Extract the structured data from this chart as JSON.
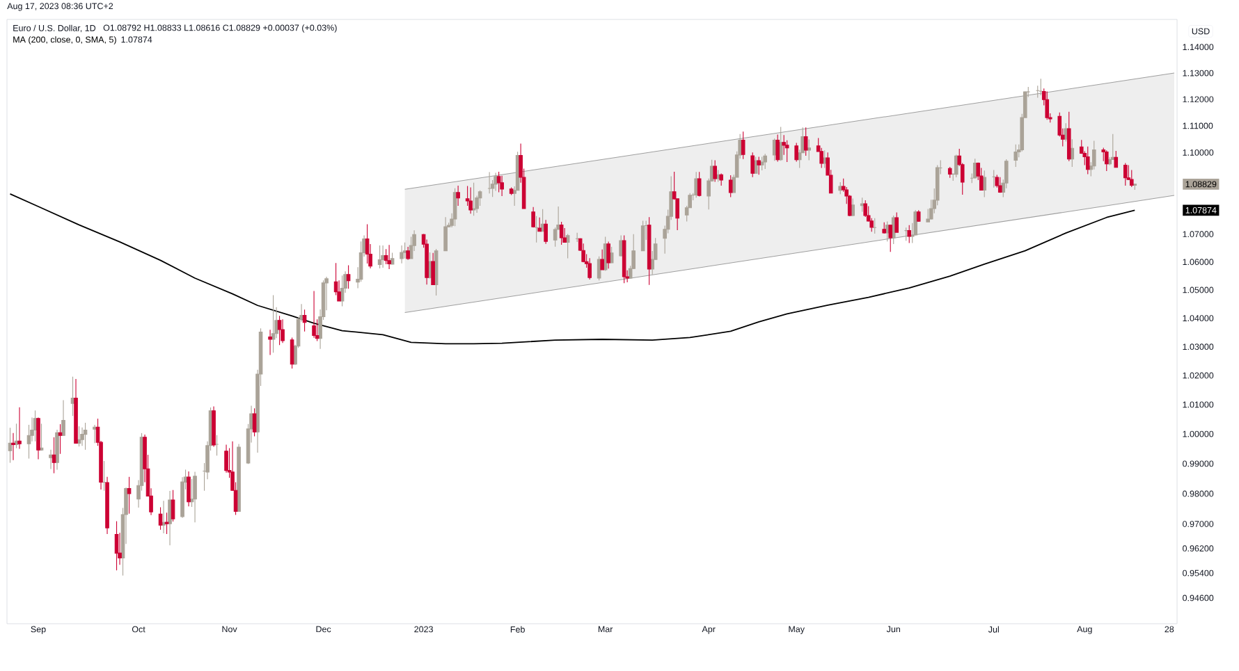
{
  "chart_data": {
    "type": "candlestick",
    "title": "Euro / U.S. Dollar, 1D",
    "subtitle": "O1.08792 H1.08833 L1.08616 C1.08829 +0.00037 (+0.03%)",
    "ylabel": "USD",
    "annotations": [
      "Aug 17, 2023 08:36 UTC+2",
      "1.08829",
      "1.07874"
    ],
    "log": "y",
    "legend": "top left",
    "xlim": [
      "2022-08-22",
      "2023-08-30T12:00"
    ],
    "xticks": [
      {
        "value": "2022-09-01",
        "label": "Sep"
      },
      {
        "value": "2022-10-03",
        "label": "Oct"
      },
      {
        "value": "2022-11-01",
        "label": "Nov"
      },
      {
        "value": "2022-12-01",
        "label": "Dec"
      },
      {
        "value": "2023-01-02",
        "label": "2023"
      },
      {
        "value": "2023-02-01",
        "label": "Feb"
      },
      {
        "value": "2023-03-01",
        "label": "Mar"
      },
      {
        "value": "2023-04-03",
        "label": "Apr"
      },
      {
        "value": "2023-05-01",
        "label": "May"
      },
      {
        "value": "2023-06-01",
        "label": "Jun"
      },
      {
        "value": "2023-07-03",
        "label": "Jul"
      },
      {
        "value": "2023-08-01",
        "label": "Aug"
      },
      {
        "value": "2023-08-28",
        "label": "28"
      }
    ],
    "ylim": [
      0.9378,
      1.1507
    ],
    "yticks": [
      {
        "value": 0.946,
        "label": "0.94600"
      },
      {
        "value": 0.954,
        "label": "0.95400"
      },
      {
        "value": 0.962,
        "label": "0.96200"
      },
      {
        "value": 0.97,
        "label": "0.97000"
      },
      {
        "value": 0.98,
        "label": "0.98000"
      },
      {
        "value": 0.99,
        "label": "0.99000"
      },
      {
        "value": 1.0,
        "label": "1.00000"
      },
      {
        "value": 1.01,
        "label": "1.01000"
      },
      {
        "value": 1.02,
        "label": "1.02000"
      },
      {
        "value": 1.03,
        "label": "1.03000"
      },
      {
        "value": 1.04,
        "label": "1.04000"
      },
      {
        "value": 1.05,
        "label": "1.05000"
      },
      {
        "value": 1.06,
        "label": "1.06000"
      },
      {
        "value": 1.07,
        "label": "1.07000"
      },
      {
        "value": 1.1,
        "label": "1.10000"
      },
      {
        "value": 1.11,
        "label": "1.11000"
      },
      {
        "value": 1.12,
        "label": "1.12000"
      },
      {
        "value": 1.13,
        "label": "1.13000"
      },
      {
        "value": 1.14,
        "label": "1.14000"
      }
    ],
    "series": [
      {
        "type": "line",
        "color": "#9e9e9e",
        "x": [
          "2022-12-27",
          "2023-08-29T14:24"
        ],
        "values": [
          1.0864,
          1.13
        ],
        "lower": [
          1.042,
          1.0841
        ],
        "upper": [
          1.0864,
          1.13
        ]
      },
      {
        "type": "line",
        "color": "#9e9e9e",
        "x": [
          "2022-12-27",
          "2023-08-29T14:24"
        ],
        "values": [
          1.042,
          1.0841
        ]
      },
      {
        "type": "line",
        "name": "MA (200, close, 0, SMA, 5)",
        "color": "#000000",
        "x": [
          "2022-08-23",
          "2022-09-01",
          "2022-09-14",
          "2022-09-27",
          "2022-10-10",
          "2022-10-21",
          "2022-11-02",
          "2022-11-10",
          "2022-11-21",
          "2022-11-28",
          "2022-12-07",
          "2022-12-20",
          "2022-12-29",
          "2023-01-09",
          "2023-01-18",
          "2023-01-27",
          "2023-02-13",
          "2023-02-28",
          "2023-03-16",
          "2023-03-28",
          "2023-04-10",
          "2023-04-19",
          "2023-04-28",
          "2023-05-11",
          "2023-05-24",
          "2023-06-06",
          "2023-06-19",
          "2023-06-30",
          "2023-07-13",
          "2023-07-26",
          "2023-08-08",
          "2023-08-17"
        ],
        "values": [
          1.0847,
          1.0801,
          1.0734,
          1.0672,
          1.0606,
          1.0542,
          1.0486,
          1.0445,
          1.0408,
          1.0382,
          1.0356,
          1.0342,
          1.0315,
          1.031,
          1.031,
          1.0312,
          1.0323,
          1.0326,
          1.0323,
          1.0332,
          1.0354,
          1.0387,
          1.0415,
          1.0446,
          1.0474,
          1.0507,
          1.0549,
          1.0592,
          1.064,
          1.0704,
          1.0761,
          1.0787
        ]
      },
      {
        "color": "#aaa398",
        "x": [
          "2022-08-23",
          "2022-08-25",
          "2022-08-29",
          "2022-08-30",
          "2022-08-31",
          "2022-09-02",
          "2022-09-05",
          "2022-09-07",
          "2022-09-09",
          "2022-09-12",
          "2022-09-14",
          "2022-09-15",
          "2022-09-16",
          "2022-09-19",
          "2022-09-22",
          "2022-09-28",
          "2022-09-29",
          "2022-10-03",
          "2022-10-04",
          "2022-10-11",
          "2022-10-13",
          "2022-10-17",
          "2022-10-18",
          "2022-10-20",
          "2022-10-21",
          "2022-10-24",
          "2022-10-25",
          "2022-10-26",
          "2022-10-28",
          "2022-11-04",
          "2022-11-07",
          "2022-11-08",
          "2022-11-10",
          "2022-11-11",
          "2022-11-15",
          "2022-11-16",
          "2022-11-22",
          "2022-11-23",
          "2022-11-24",
          "2022-11-30",
          "2022-12-01",
          "2022-12-02",
          "2022-12-07",
          "2022-12-08",
          "2022-12-12",
          "2022-12-13",
          "2022-12-14",
          "2022-12-19",
          "2022-12-20",
          "2022-12-23",
          "2022-12-26",
          "2022-12-27",
          "2022-12-29",
          "2022-12-30",
          "2023-01-04",
          "2023-01-06",
          "2023-01-09",
          "2023-01-10",
          "2023-01-11",
          "2023-01-12",
          "2023-01-18",
          "2023-01-19",
          "2023-01-20",
          "2023-01-23",
          "2023-01-24",
          "2023-01-25",
          "2023-01-31",
          "2023-02-01",
          "2023-02-07",
          "2023-02-09",
          "2023-02-13",
          "2023-02-14",
          "2023-02-17",
          "2023-02-20",
          "2023-02-27",
          "2023-03-01",
          "2023-03-03",
          "2023-03-06",
          "2023-03-09",
          "2023-03-10",
          "2023-03-13",
          "2023-03-14",
          "2023-03-16",
          "2023-03-17",
          "2023-03-20",
          "2023-03-21",
          "2023-03-22",
          "2023-03-27",
          "2023-03-28",
          "2023-03-29",
          "2023-03-30",
          "2023-04-03",
          "2023-04-04",
          "2023-04-06",
          "2023-04-11",
          "2023-04-12",
          "2023-04-13",
          "2023-04-18",
          "2023-04-20",
          "2023-04-21",
          "2023-04-24",
          "2023-04-26",
          "2023-05-02",
          "2023-05-03",
          "2023-05-05",
          "2023-05-10",
          "2023-05-15",
          "2023-05-19",
          "2023-05-22",
          "2023-05-26",
          "2023-05-30",
          "2023-06-01",
          "2023-06-05",
          "2023-06-07",
          "2023-06-08",
          "2023-06-12",
          "2023-06-13",
          "2023-06-14",
          "2023-06-15",
          "2023-06-16",
          "2023-06-20",
          "2023-06-21",
          "2023-06-26",
          "2023-06-27",
          "2023-06-30",
          "2023-07-03",
          "2023-07-06",
          "2023-07-07",
          "2023-07-10",
          "2023-07-11",
          "2023-07-12",
          "2023-07-13",
          "2023-07-14",
          "2023-07-17",
          "2023-07-18",
          "2023-07-26",
          "2023-07-28",
          "2023-08-03",
          "2023-08-04",
          "2023-08-09",
          "2023-08-10",
          "2023-08-17"
        ],
        "ohlc": [
          [
            0.9944,
            1.0021,
            0.9903,
            0.9969
          ],
          [
            0.9964,
            1.0035,
            0.9952,
            0.9976
          ],
          [
            0.9967,
            1.0031,
            0.9917,
            0.9995
          ],
          [
            0.9995,
            1.0056,
            0.9975,
            1.0013
          ],
          [
            1.0013,
            1.008,
            0.9975,
            1.0053
          ],
          [
            0.9946,
            1.0035,
            0.9944,
            0.9953
          ],
          [
            0.992,
            0.9947,
            0.9882,
            0.9929
          ],
          [
            0.9904,
            1.0014,
            0.988,
            1.0004
          ],
          [
            0.9995,
            1.0115,
            0.9994,
            1.0046
          ],
          [
            1.0104,
            1.0196,
            1.0061,
            1.0122
          ],
          [
            0.9969,
            1.0026,
            0.9958,
            0.9981
          ],
          [
            0.9981,
            1.0022,
            0.996,
            0.9999
          ],
          [
            0.9999,
            1.0038,
            0.9947,
            1.0013
          ],
          [
            1.0016,
            1.0031,
            0.9969,
            1.0023
          ],
          [
            0.9838,
            0.9909,
            0.981,
            0.9838
          ],
          [
            0.9589,
            0.9753,
            0.9532,
            0.9731
          ],
          [
            0.9731,
            0.982,
            0.9635,
            0.9817
          ],
          [
            0.9782,
            0.9845,
            0.9754,
            0.9827
          ],
          [
            0.9827,
            1.0003,
            0.981,
            0.9989
          ],
          [
            0.9696,
            0.9776,
            0.9669,
            0.9705
          ],
          [
            0.9701,
            0.9809,
            0.963,
            0.9779
          ],
          [
            0.9724,
            0.9855,
            0.972,
            0.9839
          ],
          [
            0.9838,
            0.988,
            0.9814,
            0.9855
          ],
          [
            0.9773,
            0.9849,
            0.9756,
            0.9782
          ],
          [
            0.9782,
            0.9873,
            0.9705,
            0.9858
          ],
          [
            0.9875,
            0.9902,
            0.981,
            0.9875
          ],
          [
            0.9872,
            0.9975,
            0.9848,
            0.9961
          ],
          [
            0.9961,
            1.009,
            0.9944,
            1.0079
          ],
          [
            0.9965,
            0.9996,
            0.9927,
            0.9965
          ],
          [
            0.9741,
            0.9966,
            0.9741,
            0.9956
          ],
          [
            0.9902,
            1.0034,
            0.9899,
            1.0017
          ],
          [
            1.0017,
            1.0096,
            0.9971,
            1.0069
          ],
          [
            1.0007,
            1.022,
            0.9937,
            1.0205
          ],
          [
            1.0205,
            1.0364,
            1.0164,
            1.0351
          ],
          [
            1.0326,
            1.0481,
            1.0279,
            1.0346
          ],
          [
            1.0346,
            1.0439,
            1.033,
            1.0392
          ],
          [
            1.0239,
            1.0307,
            1.0237,
            1.0302
          ],
          [
            1.0302,
            1.0405,
            1.0296,
            1.0396
          ],
          [
            1.0396,
            1.045,
            1.0388,
            1.041
          ],
          [
            1.0329,
            1.0431,
            1.0292,
            1.0405
          ],
          [
            1.0405,
            1.0534,
            1.0394,
            1.0525
          ],
          [
            1.0525,
            1.0547,
            1.0428,
            1.054
          ],
          [
            1.0461,
            1.0551,
            1.0442,
            1.0506
          ],
          [
            1.0506,
            1.0566,
            1.049,
            1.0555
          ],
          [
            1.0528,
            1.0581,
            1.0506,
            1.0538
          ],
          [
            1.0538,
            1.0674,
            1.0529,
            1.0633
          ],
          [
            1.0633,
            1.0696,
            1.0619,
            1.0683
          ],
          [
            1.0591,
            1.0659,
            1.0577,
            1.0608
          ],
          [
            1.0608,
            1.0659,
            1.0579,
            1.0623
          ],
          [
            1.0592,
            1.0633,
            1.0591,
            1.0612
          ],
          [
            1.0612,
            1.0659,
            1.0595,
            1.0634
          ],
          [
            1.0634,
            1.067,
            1.0612,
            1.064
          ],
          [
            1.0612,
            1.0691,
            1.0612,
            1.0659
          ],
          [
            1.0659,
            1.0714,
            1.0639,
            1.0699
          ],
          [
            1.0544,
            1.0634,
            1.0541,
            1.0602
          ],
          [
            1.0519,
            1.0647,
            1.048,
            1.064
          ],
          [
            1.064,
            1.0762,
            1.064,
            1.0727
          ],
          [
            1.0727,
            1.0742,
            1.0725,
            1.0732
          ],
          [
            1.0732,
            1.0776,
            1.0725,
            1.0755
          ],
          [
            1.0755,
            1.0868,
            1.0729,
            1.0852
          ],
          [
            1.0788,
            1.0888,
            1.0767,
            1.0793
          ],
          [
            1.0793,
            1.084,
            1.0778,
            1.0832
          ],
          [
            1.0832,
            1.086,
            1.0803,
            1.0855
          ],
          [
            1.0867,
            1.0927,
            1.0849,
            1.0867
          ],
          [
            1.0867,
            1.0898,
            1.0836,
            1.0883
          ],
          [
            1.0883,
            1.0925,
            1.0858,
            1.0911
          ],
          [
            1.0849,
            1.0875,
            1.0803,
            1.086
          ],
          [
            1.086,
            1.1003,
            1.086,
            1.0989
          ],
          [
            1.0724,
            1.0766,
            1.067,
            1.0724
          ],
          [
            1.071,
            1.0791,
            1.071,
            1.0737
          ],
          [
            1.0679,
            1.0724,
            1.0655,
            1.0717
          ],
          [
            1.0717,
            1.0801,
            1.0717,
            1.0734
          ],
          [
            1.0671,
            1.0701,
            1.0613,
            1.0695
          ],
          [
            1.0684,
            1.0705,
            1.0672,
            1.0684
          ],
          [
            1.0542,
            1.062,
            1.0534,
            1.0609
          ],
          [
            1.0572,
            1.0691,
            1.0568,
            1.0665
          ],
          [
            1.0597,
            1.0654,
            1.0596,
            1.0632
          ],
          [
            1.0622,
            1.0696,
            1.062,
            1.0677
          ],
          [
            1.0542,
            1.0586,
            1.0541,
            1.0576
          ],
          [
            1.0576,
            1.07,
            1.0574,
            1.064
          ],
          [
            1.064,
            1.0749,
            1.064,
            1.073
          ],
          [
            1.0731,
            1.0749,
            1.068,
            1.0731
          ],
          [
            1.0574,
            1.0639,
            1.0555,
            1.0609
          ],
          [
            1.0609,
            1.0686,
            1.0608,
            1.0665
          ],
          [
            1.0685,
            1.0731,
            1.063,
            1.0718
          ],
          [
            1.0718,
            1.0789,
            1.0703,
            1.0765
          ],
          [
            1.0765,
            1.0912,
            1.0752,
            1.0855
          ],
          [
            1.077,
            1.0803,
            1.0746,
            1.0796
          ],
          [
            1.0796,
            1.085,
            1.0796,
            1.0842
          ],
          [
            1.0843,
            1.085,
            1.0824,
            1.0843
          ],
          [
            1.0843,
            1.0928,
            1.0833,
            1.0903
          ],
          [
            1.0839,
            1.0904,
            1.079,
            1.0895
          ],
          [
            1.0895,
            1.0973,
            1.0892,
            1.0949
          ],
          [
            1.0903,
            1.0935,
            1.0891,
            1.0918
          ],
          [
            1.0852,
            1.0918,
            1.0852,
            1.0908
          ],
          [
            1.0908,
            1.1004,
            1.0908,
            1.0991
          ],
          [
            1.0991,
            1.1069,
            1.0978,
            1.1046
          ],
          [
            1.0923,
            1.0984,
            1.0922,
            1.097
          ],
          [
            1.0954,
            1.0984,
            1.0934,
            1.0965
          ],
          [
            1.0965,
            1.0995,
            1.0939,
            1.0987
          ],
          [
            1.0991,
            1.1052,
            1.0969,
            1.1046
          ],
          [
            1.0973,
            1.1096,
            1.0969,
            1.1038
          ],
          [
            1.0973,
            1.1011,
            1.0943,
            1.0999
          ],
          [
            1.0999,
            1.1094,
            1.0999,
            1.1059
          ],
          [
            1.1009,
            1.1049,
            1.0971,
            1.1017
          ],
          [
            1.096,
            1.1008,
            1.0943,
            1.098
          ],
          [
            1.086,
            1.089,
            1.0846,
            1.0875
          ],
          [
            1.0768,
            1.083,
            1.0765,
            1.0806
          ],
          [
            1.0804,
            1.0833,
            1.0782,
            1.0811
          ],
          [
            1.0724,
            1.0758,
            1.0702,
            1.0724
          ],
          [
            1.0705,
            1.0746,
            1.0674,
            1.0733
          ],
          [
            1.0687,
            1.0768,
            1.0664,
            1.076
          ],
          [
            1.0713,
            1.0724,
            1.0676,
            1.0713
          ],
          [
            1.0692,
            1.0741,
            1.0668,
            1.0697
          ],
          [
            1.0697,
            1.0787,
            1.0696,
            1.0781
          ],
          [
            1.0745,
            1.0792,
            1.0745,
            1.0755
          ],
          [
            1.0755,
            1.0826,
            1.0754,
            1.0793
          ],
          [
            1.0793,
            1.0867,
            1.0776,
            1.0824
          ],
          [
            1.0824,
            1.0953,
            1.0805,
            1.0944
          ],
          [
            1.0943,
            1.0971,
            1.092,
            1.0943
          ],
          [
            1.092,
            1.0922,
            1.0895,
            1.092
          ],
          [
            1.0919,
            1.0992,
            1.0908,
            1.0987
          ],
          [
            1.0905,
            1.0922,
            1.0887,
            1.0905
          ],
          [
            1.0906,
            1.0977,
            1.0903,
            1.0961
          ],
          [
            1.0861,
            1.0933,
            1.0835,
            1.0908
          ],
          [
            1.091,
            1.0935,
            1.087,
            1.091
          ],
          [
            1.0853,
            1.09,
            1.0835,
            1.0887
          ],
          [
            1.0887,
            1.0975,
            1.0868,
            1.0968
          ],
          [
            1.0971,
            1.103,
            1.0947,
            1.1002
          ],
          [
            1.1002,
            1.103,
            1.0982,
            1.101
          ],
          [
            1.101,
            1.1145,
            1.1004,
            1.1131
          ],
          [
            1.1131,
            1.123,
            1.1131,
            1.1228
          ],
          [
            1.1228,
            1.1247,
            1.1209,
            1.1228
          ],
          [
            1.1233,
            1.1252,
            1.1206,
            1.1233
          ],
          [
            1.1231,
            1.1278,
            1.1215,
            1.1231
          ],
          [
            1.105,
            1.111,
            1.1041,
            1.1089
          ],
          [
            1.0976,
            1.105,
            1.0947,
            1.1016
          ],
          [
            1.0937,
            1.0964,
            1.0912,
            1.095
          ],
          [
            1.095,
            1.1044,
            1.0937,
            1.101
          ],
          [
            1.0958,
            1.0982,
            1.0953,
            1.0974
          ],
          [
            1.0974,
            1.1069,
            1.0973,
            1.0982
          ],
          [
            1.0879,
            1.0883,
            1.0862,
            1.0883
          ]
        ]
      },
      {
        "color": "#cc0033",
        "x": [
          "2022-08-24",
          "2022-08-26",
          "2022-09-01",
          "2022-09-06",
          "2022-09-08",
          "2022-09-13",
          "2022-09-20",
          "2022-09-21",
          "2022-09-23",
          "2022-09-26",
          "2022-09-27",
          "2022-09-30",
          "2022-10-05",
          "2022-10-06",
          "2022-10-07",
          "2022-10-10",
          "2022-10-12",
          "2022-10-14",
          "2022-10-19",
          "2022-10-27",
          "2022-10-31",
          "2022-11-01",
          "2022-11-02",
          "2022-11-03",
          "2022-11-09",
          "2022-11-14",
          "2022-11-17",
          "2022-11-18",
          "2022-11-21",
          "2022-11-25",
          "2022-11-28",
          "2022-11-29",
          "2022-12-05",
          "2022-12-06",
          "2022-12-09",
          "2022-12-15",
          "2022-12-16",
          "2022-12-21",
          "2022-12-22",
          "2022-12-28",
          "2023-01-02",
          "2023-01-03",
          "2023-01-05",
          "2023-01-13",
          "2023-01-16",
          "2023-01-17",
          "2023-01-26",
          "2023-01-27",
          "2023-01-30",
          "2023-02-02",
          "2023-02-03",
          "2023-02-06",
          "2023-02-08",
          "2023-02-10",
          "2023-02-15",
          "2023-02-16",
          "2023-02-21",
          "2023-02-22",
          "2023-02-23",
          "2023-02-24",
          "2023-02-28",
          "2023-03-02",
          "2023-03-07",
          "2023-03-08",
          "2023-03-15",
          "2023-03-23",
          "2023-03-24",
          "2023-03-31",
          "2023-04-05",
          "2023-04-07",
          "2023-04-10",
          "2023-04-14",
          "2023-04-17",
          "2023-04-19",
          "2023-04-25",
          "2023-04-27",
          "2023-04-28",
          "2023-05-01",
          "2023-05-04",
          "2023-05-08",
          "2023-05-09",
          "2023-05-11",
          "2023-05-12",
          "2023-05-16",
          "2023-05-17",
          "2023-05-18",
          "2023-05-23",
          "2023-05-24",
          "2023-05-25",
          "2023-05-29",
          "2023-05-31",
          "2023-06-02",
          "2023-06-06",
          "2023-06-09",
          "2023-06-19",
          "2023-06-22",
          "2023-06-23",
          "2023-06-28",
          "2023-06-29",
          "2023-07-04",
          "2023-07-05",
          "2023-07-19",
          "2023-07-20",
          "2023-07-21",
          "2023-07-24",
          "2023-07-25",
          "2023-07-27",
          "2023-07-31",
          "2023-08-01",
          "2023-08-02",
          "2023-08-07",
          "2023-08-08",
          "2023-08-11",
          "2023-08-14",
          "2023-08-15",
          "2023-08-16"
        ],
        "ohlc": [
          [
            0.9969,
            1.0003,
            0.9912,
            0.9964
          ],
          [
            0.9976,
            1.0091,
            0.995,
            0.9967
          ],
          [
            1.0053,
            1.0056,
            0.9915,
            0.9946
          ],
          [
            0.9929,
            0.9989,
            0.9868,
            0.9904
          ],
          [
            1.0004,
            1.0033,
            0.9933,
            0.9995
          ],
          [
            1.0122,
            1.0188,
            0.9968,
            0.9969
          ],
          [
            1.0023,
            1.0052,
            0.996,
            0.9972
          ],
          [
            0.9972,
            0.9977,
            0.9814,
            0.9838
          ],
          [
            0.9837,
            0.9856,
            0.9667,
            0.9687
          ],
          [
            0.9666,
            0.9709,
            0.9549,
            0.9604
          ],
          [
            0.9605,
            0.9671,
            0.9567,
            0.9589
          ],
          [
            0.9817,
            0.9856,
            0.9734,
            0.98
          ],
          [
            0.9989,
            0.9998,
            0.9838,
            0.9883
          ],
          [
            0.9883,
            0.993,
            0.9791,
            0.9792
          ],
          [
            0.9792,
            0.9818,
            0.9729,
            0.974
          ],
          [
            0.9733,
            0.9755,
            0.9681,
            0.9696
          ],
          [
            0.9706,
            0.9737,
            0.9667,
            0.9701
          ],
          [
            0.9779,
            0.9812,
            0.9708,
            0.9717
          ],
          [
            0.9855,
            0.9874,
            0.9758,
            0.9773
          ],
          [
            1.0079,
            1.0094,
            0.9957,
            0.9963
          ],
          [
            0.9942,
            0.9964,
            0.987,
            0.9877
          ],
          [
            0.9877,
            0.9952,
            0.9853,
            0.9872
          ],
          [
            0.9872,
            0.9975,
            0.9811,
            0.9811
          ],
          [
            0.9811,
            0.9838,
            0.973,
            0.9741
          ],
          [
            1.0069,
            1.0087,
            0.9992,
            1.0007
          ],
          [
            1.0334,
            1.0359,
            1.0271,
            1.0326
          ],
          [
            1.0392,
            1.0408,
            1.0306,
            1.036
          ],
          [
            1.036,
            1.0396,
            1.0313,
            1.0321
          ],
          [
            1.0324,
            1.0332,
            1.0224,
            1.0239
          ],
          [
            1.041,
            1.043,
            1.0353,
            1.0385
          ],
          [
            1.0373,
            1.0496,
            1.0331,
            1.0339
          ],
          [
            1.0339,
            1.0396,
            1.032,
            1.0329
          ],
          [
            1.0529,
            1.0596,
            1.0481,
            1.0493
          ],
          [
            1.0493,
            1.0534,
            1.0461,
            1.0461
          ],
          [
            1.0555,
            1.0588,
            1.0504,
            1.0533
          ],
          [
            1.0683,
            1.0736,
            1.0594,
            1.0628
          ],
          [
            1.0628,
            1.0664,
            1.0577,
            1.0585
          ],
          [
            1.0623,
            1.0646,
            1.0592,
            1.0605
          ],
          [
            1.0605,
            1.0661,
            1.0574,
            1.0593
          ],
          [
            1.064,
            1.0654,
            1.0607,
            1.0612
          ],
          [
            1.0699,
            1.0701,
            1.0651,
            1.0664
          ],
          [
            1.0664,
            1.0681,
            1.0519,
            1.0544
          ],
          [
            1.0602,
            1.0632,
            1.0518,
            1.0519
          ],
          [
            1.0852,
            1.0877,
            1.0803,
            1.0832
          ],
          [
            1.0829,
            1.0876,
            1.0803,
            1.0821
          ],
          [
            1.0821,
            1.0871,
            1.0775,
            1.0788
          ],
          [
            1.0911,
            1.0929,
            1.0853,
            1.0888
          ],
          [
            1.0888,
            1.0914,
            1.0839,
            1.0865
          ],
          [
            1.0865,
            1.0871,
            1.0843,
            1.0849
          ],
          [
            1.0989,
            1.1033,
            1.0888,
            1.0908
          ],
          [
            1.0908,
            1.094,
            1.0793,
            1.0793
          ],
          [
            1.0781,
            1.0799,
            1.0724,
            1.0727
          ],
          [
            1.0722,
            1.0761,
            1.071,
            1.071
          ],
          [
            1.0737,
            1.0752,
            1.0665,
            1.0674
          ],
          [
            1.0734,
            1.0745,
            1.0662,
            1.0687
          ],
          [
            1.0687,
            1.0722,
            1.0671,
            1.0671
          ],
          [
            1.0684,
            1.0685,
            1.0639,
            1.0642
          ],
          [
            1.0641,
            1.0666,
            1.0599,
            1.0601
          ],
          [
            1.0601,
            1.0628,
            1.0579,
            1.0594
          ],
          [
            1.0594,
            1.0614,
            1.0537,
            1.0544
          ],
          [
            1.0609,
            1.0645,
            1.0572,
            1.0572
          ],
          [
            1.0665,
            1.0673,
            1.0576,
            1.0597
          ],
          [
            1.0677,
            1.0696,
            1.0524,
            1.0547
          ],
          [
            1.0547,
            1.057,
            1.0527,
            1.0542
          ],
          [
            1.0733,
            1.0762,
            1.0518,
            1.0574
          ],
          [
            1.0855,
            1.0929,
            1.0826,
            1.0829
          ],
          [
            1.0829,
            1.0829,
            1.0715,
            1.0758
          ],
          [
            1.0903,
            1.0928,
            1.0838,
            1.0841
          ],
          [
            1.0949,
            1.0971,
            1.0891,
            1.0903
          ],
          [
            1.0918,
            1.0922,
            1.0877,
            1.0898
          ],
          [
            1.0898,
            1.0916,
            1.0835,
            1.0852
          ],
          [
            1.1046,
            1.1078,
            1.0976,
            1.0993
          ],
          [
            1.0988,
            1.1,
            1.0909,
            1.0923
          ],
          [
            1.097,
            1.0984,
            1.0918,
            1.0954
          ],
          [
            1.1046,
            1.1067,
            1.0966,
            1.0973
          ],
          [
            1.1038,
            1.1065,
            1.0991,
            1.1027
          ],
          [
            1.1027,
            1.1046,
            1.0965,
            1.1017
          ],
          [
            1.1025,
            1.1036,
            1.0966,
            1.0973
          ],
          [
            1.1059,
            1.1094,
            1.0988,
            1.1009
          ],
          [
            1.1025,
            1.1054,
            1.1004,
            1.1004
          ],
          [
            1.1004,
            1.1017,
            1.0943,
            1.096
          ],
          [
            1.098,
            1.1,
            1.0916,
            1.0916
          ],
          [
            1.0916,
            1.0936,
            1.085,
            1.085
          ],
          [
            1.0875,
            1.0904,
            1.0855,
            1.0862
          ],
          [
            1.0862,
            1.0872,
            1.081,
            1.0839
          ],
          [
            1.0839,
            1.0843,
            1.0765,
            1.0768
          ],
          [
            1.0811,
            1.0824,
            1.0763,
            1.0768
          ],
          [
            1.0768,
            1.0802,
            1.0746,
            1.0748
          ],
          [
            1.0748,
            1.0758,
            1.0709,
            1.0725
          ],
          [
            1.0718,
            1.0743,
            1.0702,
            1.0705
          ],
          [
            1.0733,
            1.0735,
            1.0636,
            1.0687
          ],
          [
            1.076,
            1.0779,
            1.0707,
            1.0707
          ],
          [
            1.0713,
            1.0733,
            1.0668,
            1.0692
          ],
          [
            1.0781,
            1.0787,
            1.0745,
            1.0747
          ],
          [
            1.0941,
            1.0947,
            1.0906,
            1.092
          ],
          [
            1.0987,
            1.1014,
            1.095,
            1.0955
          ],
          [
            1.0955,
            1.0961,
            1.0844,
            1.089
          ],
          [
            1.0961,
            1.0963,
            1.0898,
            1.0913
          ],
          [
            1.0913,
            1.0943,
            1.0861,
            1.0861
          ],
          [
            1.0908,
            1.0917,
            1.087,
            1.0877
          ],
          [
            1.0877,
            1.0909,
            1.0851,
            1.0853
          ],
          [
            1.123,
            1.1241,
            1.1177,
            1.1199
          ],
          [
            1.1199,
            1.123,
            1.1123,
            1.1131
          ],
          [
            1.1131,
            1.1147,
            1.1112,
            1.1126
          ],
          [
            1.1136,
            1.115,
            1.106,
            1.1065
          ],
          [
            1.1065,
            1.109,
            1.1023,
            1.105
          ],
          [
            1.1089,
            1.1153,
            1.0968,
            1.0976
          ],
          [
            1.1021,
            1.1047,
            1.0995,
            1.0997
          ],
          [
            1.0997,
            1.1005,
            1.0953,
            1.0984
          ],
          [
            1.0984,
            1.1022,
            1.092,
            1.0937
          ],
          [
            1.101,
            1.1018,
            1.0968,
            1.1002
          ],
          [
            1.1002,
            1.1008,
            1.0931,
            1.0958
          ],
          [
            1.0982,
            1.1006,
            1.0945,
            1.0945
          ],
          [
            1.0953,
            1.0961,
            1.0877,
            1.0906
          ],
          [
            1.0906,
            1.0953,
            1.0898,
            1.09
          ],
          [
            1.09,
            1.0935,
            1.0872,
            1.0879
          ]
        ]
      }
    ]
  }
}
